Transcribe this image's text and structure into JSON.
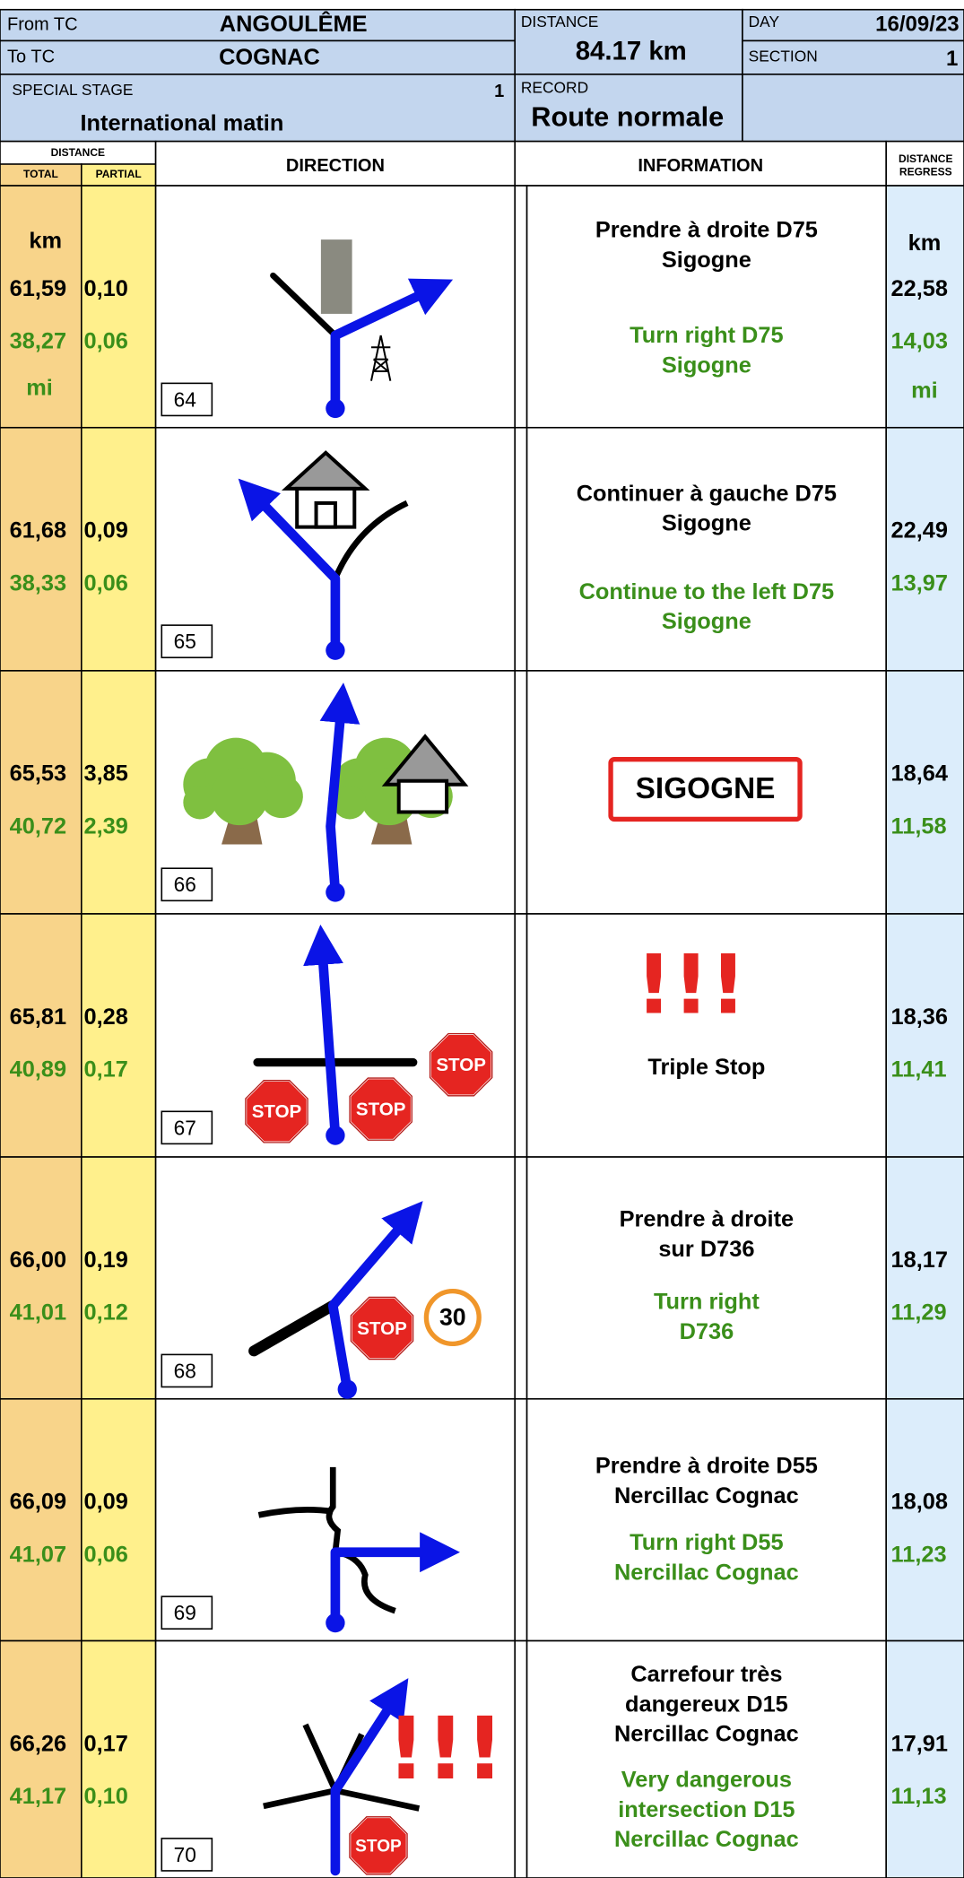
{
  "header": {
    "from_label": "From TC",
    "from": "ANGOULÊME",
    "to_label": "To TC",
    "to": "COGNAC",
    "distance_label": "DISTANCE",
    "distance": "84.17 km",
    "day_label": "DAY",
    "day": "16/09/23",
    "section_label": "SECTION",
    "section": "1",
    "special_stage_label": "SPECIAL STAGE",
    "special_stage": "1",
    "stage_name": "International matin",
    "record_label": "RECORD",
    "record": "Route normale"
  },
  "columns": {
    "distance": "DISTANCE",
    "total": "TOTAL",
    "partial": "PARTIAL",
    "direction": "DIRECTION",
    "information": "INFORMATION",
    "regress": [
      "DISTANCE",
      "REGRESS"
    ]
  },
  "units": {
    "km": "km",
    "mi": "mi"
  },
  "icons": {
    "stop": "STOP",
    "speed_limit": "30",
    "warning": "!!!"
  },
  "rows": [
    {
      "number": "64",
      "total": "61,59",
      "partial": "0,10",
      "total_mi": "38,27",
      "partial_mi": "0,06",
      "regress": "22,58",
      "regress_mi": "14,03",
      "fr": [
        "Prendre à droite D75",
        "Sigogne"
      ],
      "en": [
        "Turn right D75",
        "Sigogne"
      ]
    },
    {
      "number": "65",
      "total": "61,68",
      "partial": "0,09",
      "total_mi": "38,33",
      "partial_mi": "0,06",
      "regress": "22,49",
      "regress_mi": "13,97",
      "fr": [
        "Continuer à gauche D75",
        "Sigogne"
      ],
      "en": [
        "Continue to the left D75",
        "Sigogne"
      ]
    },
    {
      "number": "66",
      "total": "65,53",
      "partial": "3,85",
      "total_mi": "40,72",
      "partial_mi": "2,39",
      "regress": "18,64",
      "regress_mi": "11,58",
      "sign": "SIGOGNE"
    },
    {
      "number": "67",
      "total": "65,81",
      "partial": "0,28",
      "total_mi": "40,89",
      "partial_mi": "0,17",
      "regress": "18,36",
      "regress_mi": "11,41",
      "fr": [
        "Triple Stop"
      ]
    },
    {
      "number": "68",
      "total": "66,00",
      "partial": "0,19",
      "total_mi": "41,01",
      "partial_mi": "0,12",
      "regress": "18,17",
      "regress_mi": "11,29",
      "fr": [
        "Prendre à droite",
        "sur D736"
      ],
      "en": [
        "Turn right",
        "D736"
      ]
    },
    {
      "number": "69",
      "total": "66,09",
      "partial": "0,09",
      "total_mi": "41,07",
      "partial_mi": "0,06",
      "regress": "18,08",
      "regress_mi": "11,23",
      "fr": [
        "Prendre à droite D55",
        "Nercillac Cognac"
      ],
      "en": [
        "Turn right D55",
        "Nercillac Cognac"
      ]
    },
    {
      "number": "70",
      "total": "66,26",
      "partial": "0,17",
      "total_mi": "41,17",
      "partial_mi": "0,10",
      "regress": "17,91",
      "regress_mi": "11,13",
      "fr": [
        "Carrefour très",
        "dangereux D15",
        "Nercillac Cognac"
      ],
      "en": [
        "Very dangerous",
        "intersection D15",
        "Nercillac Cognac"
      ]
    }
  ]
}
